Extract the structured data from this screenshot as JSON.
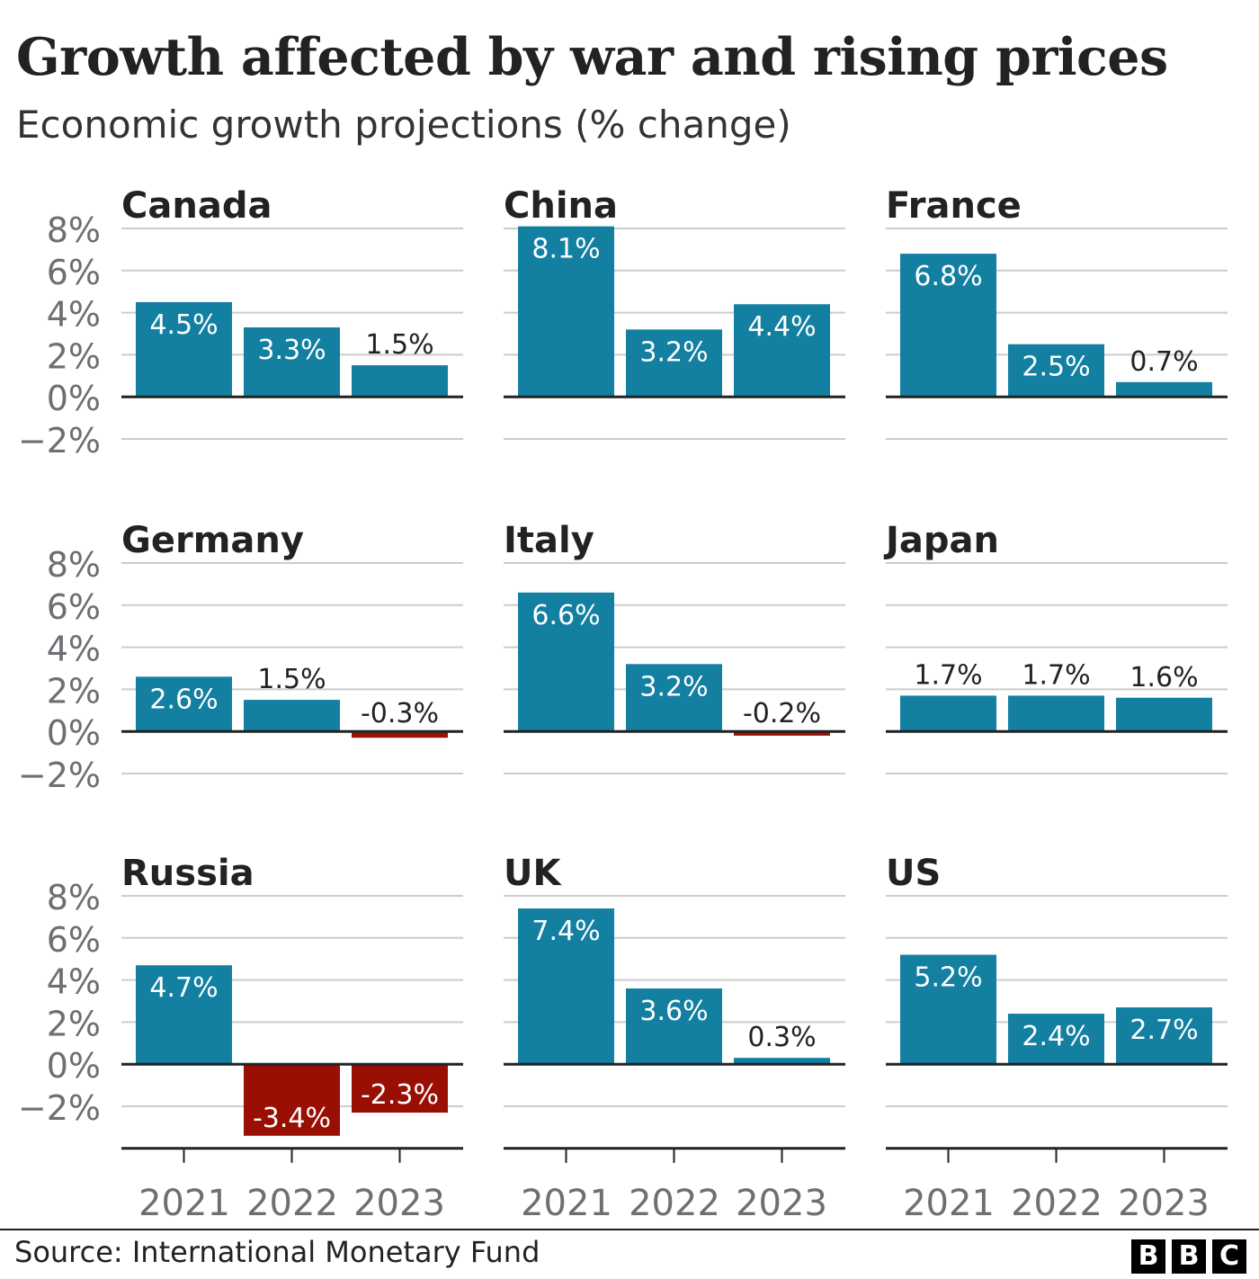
{
  "header": {
    "title": "Growth affected by war and rising prices",
    "subtitle": "Economic growth projections (% change)"
  },
  "footer": {
    "source": "Source: International Monetary Fund",
    "logo": [
      "B",
      "B",
      "C"
    ]
  },
  "colors": {
    "positive": "#1380A1",
    "negative": "#990F04",
    "grid": "#CCCCCC",
    "axis": "#222222",
    "tick_text": "#6E6E73",
    "panel_title": "#222222",
    "label_dark": "#222222",
    "label_light": "#FFFFFF"
  },
  "chart_data": {
    "type": "bar",
    "layout": "small-multiples 3x3",
    "categories": [
      "2021",
      "2022",
      "2023"
    ],
    "ylim": [
      -4,
      8
    ],
    "yticks": [
      8,
      6,
      4,
      2,
      0,
      -2
    ],
    "ytick_labels": [
      "8%",
      "6%",
      "4%",
      "2%",
      "0%",
      "−2%"
    ],
    "grid": true,
    "panels": [
      {
        "name": "Canada",
        "values": [
          4.5,
          3.3,
          1.5
        ],
        "labels": [
          "4.5%",
          "3.3%",
          "1.5%"
        ]
      },
      {
        "name": "China",
        "values": [
          8.1,
          3.2,
          4.4
        ],
        "labels": [
          "8.1%",
          "3.2%",
          "4.4%"
        ]
      },
      {
        "name": "France",
        "values": [
          6.8,
          2.5,
          0.7
        ],
        "labels": [
          "6.8%",
          "2.5%",
          "0.7%"
        ]
      },
      {
        "name": "Germany",
        "values": [
          2.6,
          1.5,
          -0.3
        ],
        "labels": [
          "2.6%",
          "1.5%",
          "-0.3%"
        ]
      },
      {
        "name": "Italy",
        "values": [
          6.6,
          3.2,
          -0.2
        ],
        "labels": [
          "6.6%",
          "3.2%",
          "-0.2%"
        ]
      },
      {
        "name": "Japan",
        "values": [
          1.7,
          1.7,
          1.6
        ],
        "labels": [
          "1.7%",
          "1.7%",
          "1.6%"
        ]
      },
      {
        "name": "Russia",
        "values": [
          4.7,
          -3.4,
          -2.3
        ],
        "labels": [
          "4.7%",
          "-3.4%",
          "-2.3%"
        ]
      },
      {
        "name": "UK",
        "values": [
          7.4,
          3.6,
          0.3
        ],
        "labels": [
          "7.4%",
          "3.6%",
          "0.3%"
        ]
      },
      {
        "name": "US",
        "values": [
          5.2,
          2.4,
          2.7
        ],
        "labels": [
          "5.2%",
          "2.4%",
          "2.7%"
        ]
      }
    ]
  }
}
